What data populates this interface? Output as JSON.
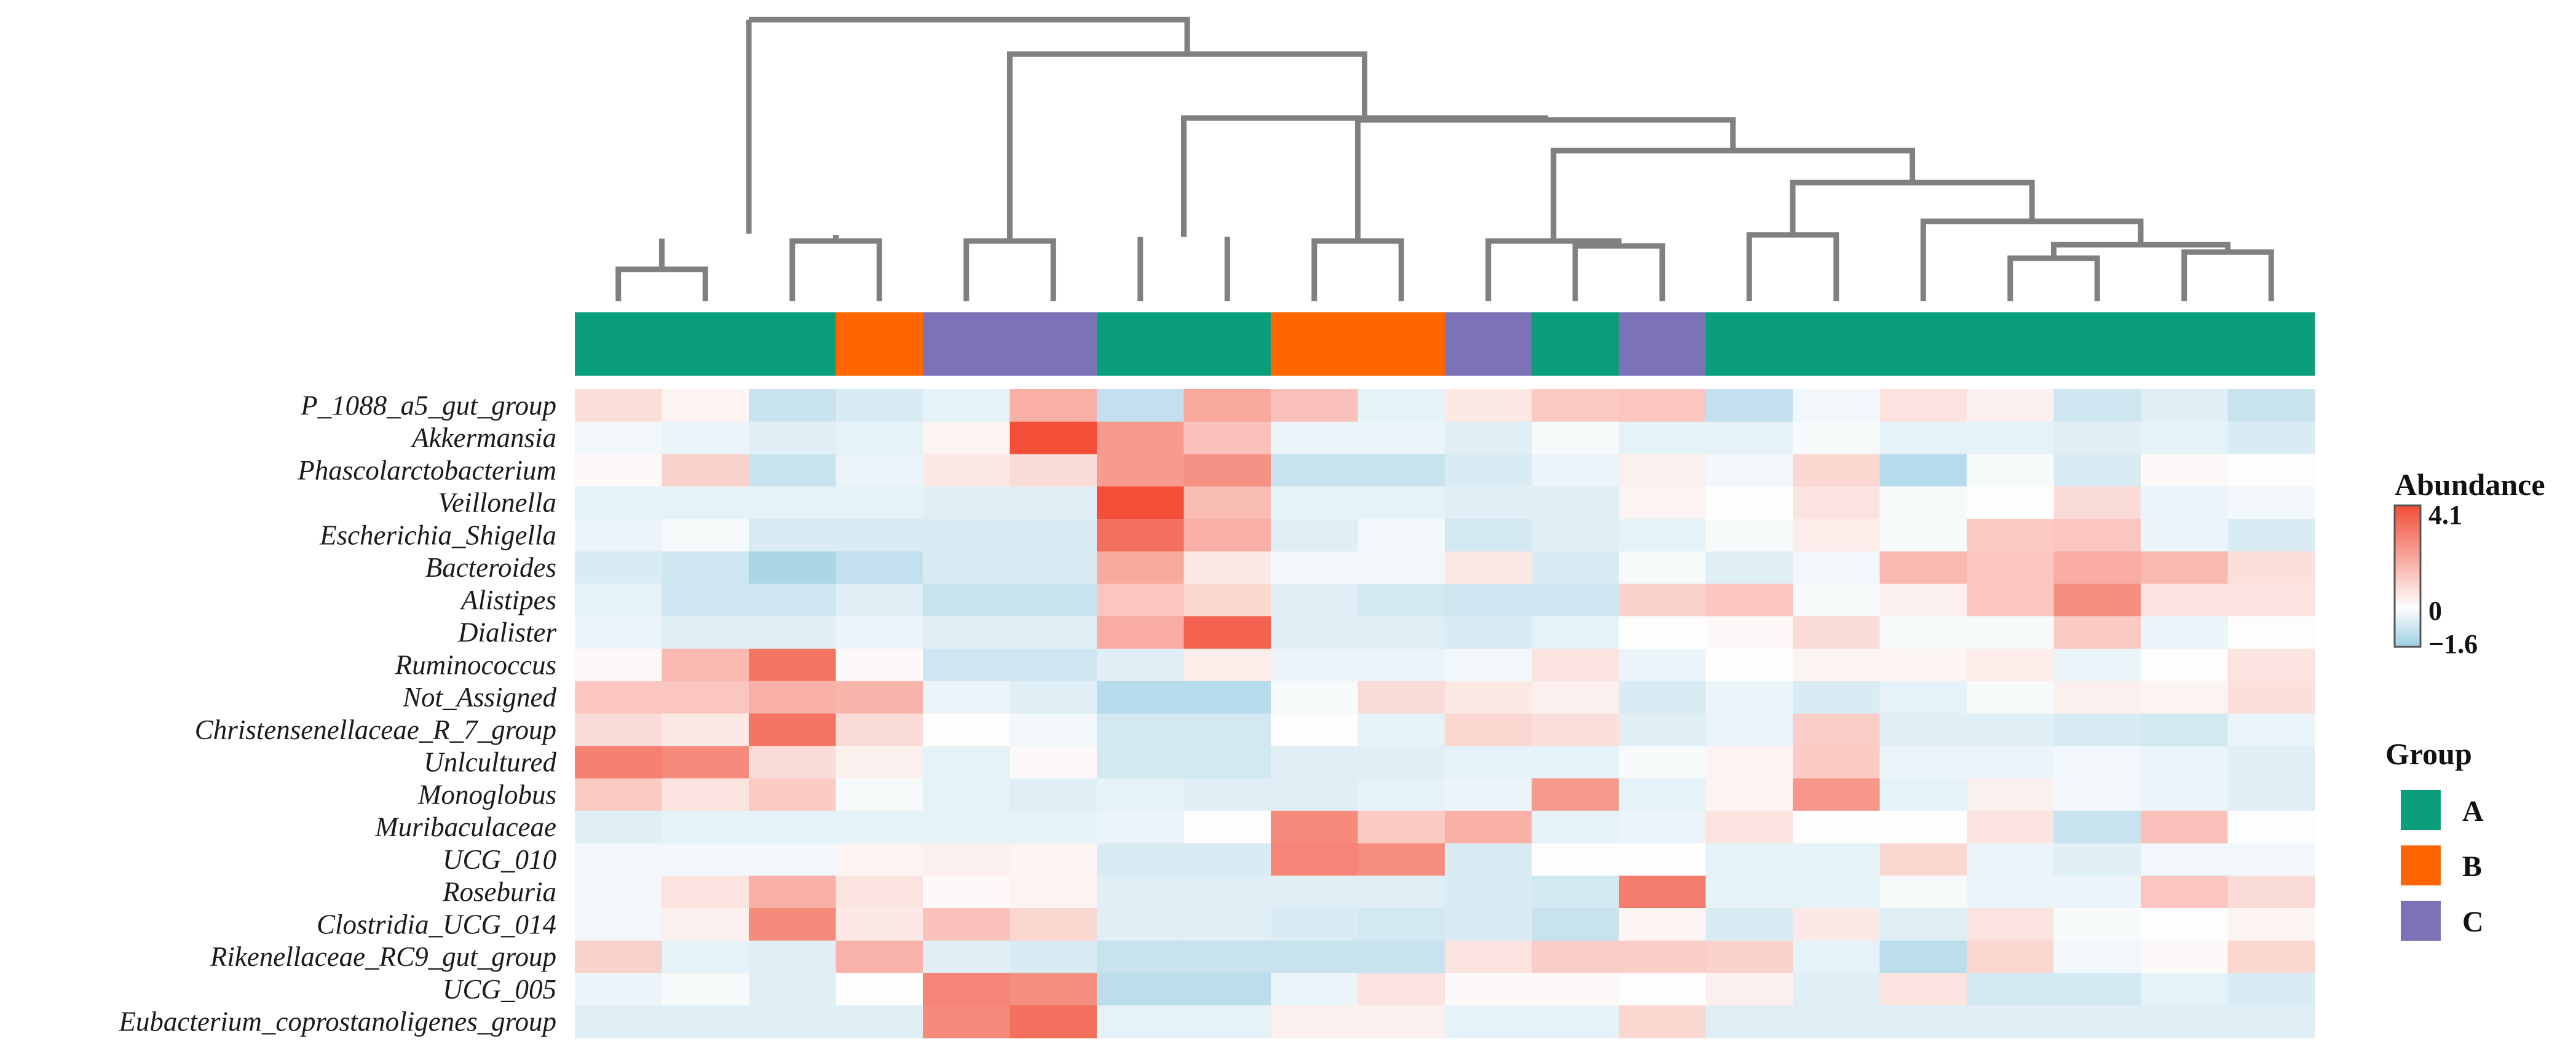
{
  "chart_data": {
    "type": "heatmap",
    "title": "",
    "rows": [
      "P_1088_a5_gut_group",
      "Akkermansia",
      "Phascolarctobacterium",
      "Veillonella",
      "Escherichia_Shigella",
      "Bacteroides",
      "Alistipes",
      "Dialister",
      "Ruminococcus",
      "Not_Assigned",
      "Christensenellaceae_R_7_group",
      "Unlcultured",
      "Monoglobus",
      "Muribaculaceae",
      "UCG_010",
      "Roseburia",
      "Clostridia_UCG_014",
      "Rikenellaceae_RC9_gut_group",
      "UCG_005",
      "Eubacterium_coprostanoligenes_group"
    ],
    "column_groups": [
      "A",
      "A",
      "A",
      "B",
      "C",
      "C",
      "A",
      "A",
      "B",
      "B",
      "C",
      "A",
      "C",
      "A",
      "A",
      "A",
      "A",
      "A",
      "A",
      "A"
    ],
    "values": [
      [
        0.7,
        0.2,
        -0.9,
        -0.6,
        -0.4,
        1.8,
        -1.0,
        2.0,
        1.4,
        -0.4,
        0.5,
        1.2,
        1.3,
        -1.0,
        -0.2,
        0.6,
        0.3,
        -0.8,
        -0.5,
        -0.9
      ],
      [
        -0.2,
        -0.3,
        -0.5,
        -0.4,
        0.2,
        4.1,
        2.3,
        1.4,
        -0.3,
        -0.3,
        -0.5,
        -0.1,
        -0.4,
        -0.4,
        -0.1,
        -0.4,
        -0.4,
        -0.5,
        -0.4,
        -0.6
      ],
      [
        0.1,
        1.0,
        -0.9,
        -0.3,
        0.5,
        0.8,
        2.3,
        2.5,
        -0.9,
        -0.9,
        -0.6,
        -0.3,
        0.3,
        -0.2,
        0.9,
        -1.2,
        -0.1,
        -0.6,
        0.1,
        0.0
      ],
      [
        -0.4,
        -0.4,
        -0.4,
        -0.4,
        -0.5,
        -0.5,
        4.1,
        1.5,
        -0.4,
        -0.4,
        -0.5,
        -0.5,
        0.2,
        0.0,
        0.6,
        -0.1,
        0.0,
        0.8,
        -0.3,
        -0.2
      ],
      [
        -0.3,
        -0.1,
        -0.6,
        -0.6,
        -0.6,
        -0.6,
        3.3,
        1.8,
        -0.5,
        -0.2,
        -0.7,
        -0.5,
        -0.4,
        -0.1,
        0.4,
        -0.1,
        1.2,
        1.3,
        -0.3,
        -0.6
      ],
      [
        -0.6,
        -0.8,
        -1.4,
        -1.0,
        -0.6,
        -0.6,
        2.0,
        0.5,
        -0.2,
        -0.2,
        0.5,
        -0.6,
        -0.1,
        -0.5,
        -0.2,
        1.6,
        1.3,
        1.9,
        1.6,
        0.7
      ],
      [
        -0.4,
        -0.8,
        -0.8,
        -0.5,
        -0.9,
        -0.9,
        1.3,
        0.9,
        -0.5,
        -0.7,
        -0.8,
        -0.8,
        1.0,
        1.3,
        -0.1,
        0.3,
        1.3,
        2.6,
        0.6,
        0.6
      ],
      [
        -0.3,
        -0.5,
        -0.5,
        -0.3,
        -0.5,
        -0.5,
        1.9,
        3.6,
        -0.5,
        -0.5,
        -0.6,
        -0.4,
        0.0,
        0.1,
        0.8,
        -0.1,
        -0.1,
        1.2,
        -0.3,
        0.0
      ],
      [
        0.1,
        1.6,
        3.2,
        0.1,
        -0.8,
        -0.8,
        -0.5,
        0.4,
        -0.3,
        -0.3,
        -0.2,
        0.6,
        -0.3,
        0.0,
        0.2,
        0.2,
        0.4,
        -0.3,
        0.0,
        0.6
      ],
      [
        1.3,
        1.3,
        1.8,
        1.7,
        -0.3,
        -0.5,
        -1.2,
        -1.2,
        -0.1,
        0.8,
        0.5,
        0.3,
        -0.6,
        -0.3,
        -0.6,
        -0.4,
        -0.1,
        0.3,
        0.2,
        0.7
      ],
      [
        0.8,
        0.5,
        3.2,
        0.8,
        0.0,
        -0.2,
        -0.7,
        -0.7,
        0.0,
        -0.4,
        0.9,
        0.7,
        -0.5,
        -0.3,
        1.1,
        -0.5,
        -0.5,
        -0.6,
        -0.7,
        -0.3
      ],
      [
        2.9,
        2.7,
        0.8,
        0.3,
        -0.4,
        0.1,
        -0.7,
        -0.7,
        -0.5,
        -0.5,
        -0.4,
        -0.4,
        -0.1,
        0.2,
        1.2,
        -0.3,
        -0.3,
        -0.2,
        -0.3,
        -0.5
      ],
      [
        1.2,
        0.6,
        1.2,
        -0.1,
        -0.4,
        -0.5,
        -0.4,
        -0.5,
        -0.5,
        -0.4,
        -0.3,
        2.3,
        -0.4,
        0.2,
        2.4,
        -0.4,
        0.3,
        -0.2,
        -0.3,
        -0.5
      ],
      [
        -0.5,
        -0.4,
        -0.4,
        -0.4,
        -0.4,
        -0.4,
        -0.3,
        0.0,
        2.7,
        1.2,
        1.8,
        -0.4,
        -0.3,
        0.6,
        0.0,
        0.0,
        0.6,
        -0.9,
        1.4,
        0.0
      ],
      [
        -0.2,
        -0.2,
        -0.2,
        0.2,
        0.3,
        0.2,
        -0.6,
        -0.6,
        2.8,
        2.6,
        -0.6,
        0.0,
        0.0,
        -0.4,
        -0.4,
        0.9,
        -0.3,
        -0.5,
        -0.2,
        -0.2
      ],
      [
        -0.2,
        0.6,
        1.8,
        0.6,
        0.1,
        0.2,
        -0.5,
        -0.5,
        -0.5,
        -0.5,
        -0.6,
        -0.7,
        3.0,
        -0.4,
        -0.4,
        -0.1,
        -0.3,
        -0.3,
        1.3,
        0.8
      ],
      [
        -0.2,
        0.3,
        2.7,
        0.5,
        1.4,
        0.9,
        -0.5,
        -0.5,
        -0.6,
        -0.7,
        -0.6,
        -0.9,
        0.2,
        -0.6,
        0.5,
        -0.5,
        0.6,
        -0.1,
        0.0,
        0.2
      ],
      [
        1.0,
        -0.4,
        -0.5,
        1.7,
        -0.5,
        -0.6,
        -0.9,
        -0.9,
        -0.9,
        -0.9,
        0.6,
        1.1,
        1.1,
        1.0,
        -0.4,
        -1.1,
        0.9,
        -0.2,
        0.1,
        0.9
      ],
      [
        -0.3,
        -0.1,
        -0.5,
        0.0,
        2.8,
        2.6,
        -1.1,
        -1.1,
        -0.3,
        0.6,
        0.1,
        0.1,
        0.0,
        0.3,
        -0.5,
        0.6,
        -0.7,
        -0.7,
        -0.4,
        -0.6
      ],
      [
        -0.5,
        -0.5,
        -0.5,
        -0.5,
        2.7,
        3.3,
        -0.4,
        -0.4,
        0.3,
        0.3,
        -0.4,
        -0.4,
        0.9,
        -0.5,
        -0.5,
        -0.5,
        -0.5,
        -0.5,
        -0.5,
        -0.5
      ]
    ],
    "color_scale": {
      "min": -1.6,
      "mid": 0,
      "max": 4.1,
      "low_color": "#9ecfe3",
      "mid_color": "#fdfdfd",
      "high_color": "#f24e38"
    },
    "legend": {
      "abundance_title": "Abundance",
      "ticks": [
        4.1,
        0,
        -1.6
      ],
      "tick_labels": [
        "4.1",
        "0",
        "−1.6"
      ],
      "group_title": "Group",
      "groups": [
        {
          "name": "A",
          "color": "#0b9e7c"
        },
        {
          "name": "B",
          "color": "#ff6600"
        },
        {
          "name": "C",
          "color": "#7b72b8"
        }
      ],
      "position": "right"
    }
  }
}
